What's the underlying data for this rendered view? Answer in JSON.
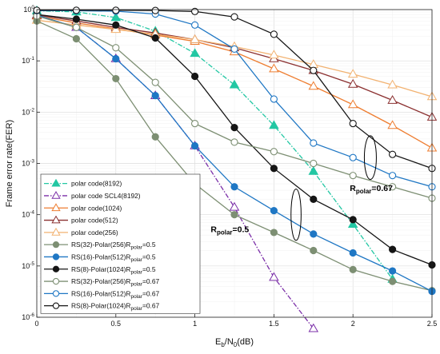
{
  "chart_data": {
    "type": "line",
    "xlabel_base": "E",
    "xlabel_sub": "b",
    "xlabel_mid": "/N",
    "xlabel_sub2": "0",
    "xlabel_tail": "(dB)",
    "ylabel": "Frame error rate(FER)",
    "xlim": [
      0,
      2.5
    ],
    "ylim": [
      1e-06,
      1
    ],
    "y_scale": "log",
    "grid": true,
    "legend_position": "bottom-left",
    "x_ticks": [
      {
        "value": 0,
        "label": "0"
      },
      {
        "value": 0.5,
        "label": "0.5"
      },
      {
        "value": 1,
        "label": "1"
      },
      {
        "value": 1.5,
        "label": "1.5"
      },
      {
        "value": 2,
        "label": "2"
      },
      {
        "value": 2.5,
        "label": "2.5"
      }
    ],
    "y_ticks": [
      {
        "value": 1e-06,
        "base": "10",
        "exp": "-6"
      },
      {
        "value": 1e-05,
        "base": "10",
        "exp": "-5"
      },
      {
        "value": 0.0001,
        "base": "10",
        "exp": "-4"
      },
      {
        "value": 0.001,
        "base": "10",
        "exp": "-3"
      },
      {
        "value": 0.01,
        "base": "10",
        "exp": "-2"
      },
      {
        "value": 0.1,
        "base": "10",
        "exp": "-1"
      },
      {
        "value": 1,
        "base": "10",
        "exp": "0"
      }
    ],
    "series": [
      {
        "name": "polar code(8192)",
        "color": "#22c7a3",
        "dash": "dashdot",
        "marker": "triangle",
        "fill": true,
        "x": [
          0,
          0.25,
          0.5,
          0.75,
          1,
          1.25,
          1.5,
          1.75,
          2,
          2.25
        ],
        "y": [
          0.95,
          0.9,
          0.7,
          0.38,
          0.14,
          0.034,
          0.0055,
          0.0007,
          6.5e-05,
          5.5e-06
        ]
      },
      {
        "name": "polar code SCL4(8192)",
        "color": "#7b2fa8",
        "dash": "dashdot",
        "marker": "triangle",
        "fill": false,
        "x": [
          0,
          0.25,
          0.5,
          0.75,
          1,
          1.25,
          1.5,
          1.75
        ],
        "y": [
          0.78,
          0.45,
          0.11,
          0.021,
          0.0022,
          0.00014,
          6e-06,
          6e-07
        ]
      },
      {
        "name": "polar code(1024)",
        "color": "#ee7d30",
        "dash": "solid",
        "marker": "triangle",
        "fill": false,
        "x": [
          0,
          0.25,
          0.5,
          0.75,
          1,
          1.25,
          1.5,
          1.75,
          2,
          2.25,
          2.5
        ],
        "y": [
          0.75,
          0.55,
          0.42,
          0.32,
          0.24,
          0.15,
          0.07,
          0.032,
          0.014,
          0.0055,
          0.002
        ]
      },
      {
        "name": "polar code(512)",
        "color": "#8b3030",
        "dash": "solid",
        "marker": "triangle",
        "fill": false,
        "x": [
          0,
          0.25,
          0.5,
          0.75,
          1,
          1.25,
          1.5,
          1.75,
          2,
          2.25,
          2.5
        ],
        "y": [
          0.78,
          0.6,
          0.45,
          0.35,
          0.26,
          0.18,
          0.11,
          0.065,
          0.035,
          0.017,
          0.008
        ]
      },
      {
        "name": "polar code(256)",
        "color": "#f2b271",
        "dash": "solid",
        "marker": "triangle",
        "fill": false,
        "x": [
          0,
          0.25,
          0.5,
          0.75,
          1,
          1.25,
          1.5,
          1.75,
          2,
          2.25,
          2.5
        ],
        "y": [
          0.62,
          0.5,
          0.41,
          0.33,
          0.26,
          0.19,
          0.13,
          0.085,
          0.055,
          0.034,
          0.02
        ]
      },
      {
        "name": "RS(32)-Polar(256)R",
        "sub": "polar",
        "rate": "=0.5",
        "color": "#7d8f73",
        "dash": "solid",
        "marker": "circle",
        "fill": true,
        "x": [
          0,
          0.25,
          0.5,
          0.75,
          1,
          1.25,
          1.5,
          1.75,
          2,
          2.25,
          2.5
        ],
        "y": [
          0.6,
          0.27,
          0.045,
          0.0033,
          0.0004,
          0.0001,
          4.5e-05,
          2e-05,
          8.5e-06,
          5e-06,
          3.3e-06
        ]
      },
      {
        "name": "RS(16)-Polar(512)R",
        "sub": "polar",
        "rate": "=0.5",
        "color": "#1f77c4",
        "dash": "solid",
        "marker": "circle",
        "fill": true,
        "x": [
          0,
          0.25,
          0.5,
          0.75,
          1,
          1.25,
          1.5,
          1.75,
          2,
          2.25,
          2.5
        ],
        "y": [
          0.78,
          0.45,
          0.11,
          0.021,
          0.0022,
          0.00035,
          0.00012,
          4.2e-05,
          1.8e-05,
          8e-06,
          3.2e-06
        ]
      },
      {
        "name": "RS(8)-Polar(1024)R",
        "sub": "polar",
        "rate": "=0.5",
        "color": "#151515",
        "dash": "solid",
        "marker": "circle",
        "fill": true,
        "x": [
          0,
          0.25,
          0.5,
          0.75,
          1,
          1.25,
          1.5,
          1.75,
          2,
          2.25,
          2.5
        ],
        "y": [
          0.8,
          0.65,
          0.5,
          0.28,
          0.05,
          0.005,
          0.0008,
          0.0002,
          8e-05,
          2.1e-05,
          1.05e-05
        ]
      },
      {
        "name": "RS(32)-Polar(256)R",
        "sub": "polar",
        "rate": "=0.67",
        "color": "#7d8f73",
        "dash": "solid",
        "marker": "circle",
        "fill": false,
        "x": [
          0,
          0.25,
          0.5,
          0.75,
          1,
          1.25,
          1.5,
          1.75,
          2,
          2.25,
          2.5
        ],
        "y": [
          0.75,
          0.45,
          0.18,
          0.038,
          0.006,
          0.0026,
          0.0017,
          0.001,
          0.00058,
          0.00035,
          0.00021
        ]
      },
      {
        "name": "RS(16)-Polar(512)R",
        "sub": "polar",
        "rate": "=0.67",
        "color": "#1f77c4",
        "dash": "solid",
        "marker": "circle",
        "fill": false,
        "x": [
          0,
          0.25,
          0.5,
          0.75,
          1,
          1.25,
          1.5,
          1.75,
          2,
          2.25,
          2.5
        ],
        "y": [
          0.95,
          0.95,
          0.93,
          0.82,
          0.5,
          0.17,
          0.018,
          0.0025,
          0.0013,
          0.00058,
          0.00035
        ]
      },
      {
        "name": "RS(8)-Polar(1024)R",
        "sub": "polar",
        "rate": "=0.67",
        "color": "#151515",
        "dash": "solid",
        "marker": "circle",
        "fill": false,
        "x": [
          0,
          0.25,
          0.5,
          0.75,
          1,
          1.25,
          1.5,
          1.75,
          2,
          2.25,
          2.5
        ],
        "y": [
          0.97,
          0.97,
          0.97,
          0.96,
          0.92,
          0.72,
          0.33,
          0.065,
          0.006,
          0.0015,
          0.0008
        ]
      }
    ],
    "annotations": [
      {
        "text": "R",
        "sub": "polar",
        "rest": "=0.5",
        "x": 1.1,
        "y": 4.6e-05
      },
      {
        "text": "R",
        "sub": "polar",
        "rest": "=0.67",
        "x": 1.98,
        "y": 0.00029
      }
    ],
    "ellipses": [
      {
        "cx": 1.64,
        "cy": 0.0001,
        "rx": 0.032,
        "decades": 1.0
      },
      {
        "cx": 2.11,
        "cy": 0.0013,
        "rx": 0.038,
        "decades": 0.85
      }
    ]
  }
}
